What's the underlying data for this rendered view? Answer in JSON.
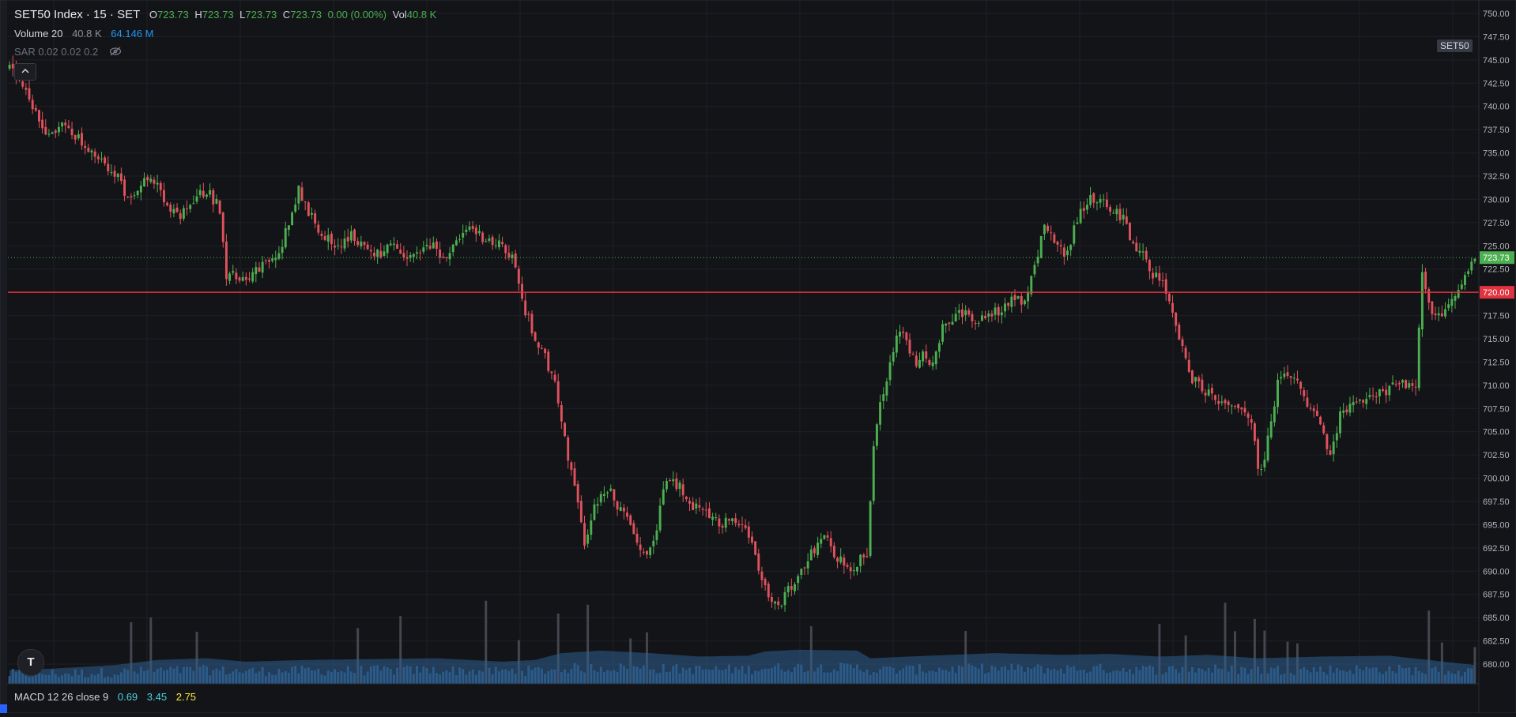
{
  "header": {
    "symbol": "SET50 Index · 15 · SET",
    "o_label": "O",
    "o_value": "723.73",
    "h_label": "H",
    "h_value": "723.73",
    "l_label": "L",
    "l_value": "723.73",
    "c_label": "C",
    "c_value": "723.73",
    "change": "0.00 (0.00%)",
    "vol_label": "Vol",
    "vol_value": "40.8 K"
  },
  "volume_legend": {
    "name": "Volume 20",
    "value": "40.8 K",
    "ma": "64.146 M"
  },
  "sar_legend": {
    "name": "SAR 0.02 0.02 0.2"
  },
  "macd_legend": {
    "name": "MACD 12 26 close 9",
    "v1": "0.69",
    "v2": "3.45",
    "v3": "2.75"
  },
  "symbol_tag": "SET50",
  "logo_text": "T",
  "colors": {
    "up": "#4caf50",
    "down": "#e0525c",
    "background": "#131418",
    "grid": "#1e2026",
    "axis_text": "#b2b5be",
    "volume": "#2d5f8f",
    "hline": "#e0323f",
    "last_price": "#4caf50",
    "vol_value": "#8a8f99",
    "vol_ma": "#2196f3",
    "macd1": "#2196f3",
    "macd2": "#4dd0e1",
    "macd3": "#ffeb3b"
  },
  "icons": {
    "collapse": "chevron-up-icon",
    "hide": "eye-off-icon",
    "logo": "tradingview-logo"
  },
  "chart_data": {
    "type": "candlestick",
    "title": "SET50 Index · 15 · SET",
    "ylim": [
      679,
      751
    ],
    "y_ticks": [
      "680.00",
      "682.50",
      "685.00",
      "687.50",
      "690.00",
      "692.50",
      "695.00",
      "697.50",
      "700.00",
      "702.50",
      "705.00",
      "707.50",
      "710.00",
      "712.50",
      "715.00",
      "717.50",
      "720.00",
      "722.50",
      "725.00",
      "727.50",
      "730.00",
      "732.50",
      "735.00",
      "737.50",
      "740.00",
      "742.50",
      "745.00",
      "747.50",
      "750.00"
    ],
    "horizontal_line": {
      "value": 720.0,
      "label": "720.00"
    },
    "last_price": {
      "value": 723.73,
      "label": "723.73"
    },
    "close_path": [
      [
        0,
        744
      ],
      [
        4,
        742
      ],
      [
        8,
        739
      ],
      [
        12,
        737
      ],
      [
        16,
        738
      ],
      [
        20,
        737
      ],
      [
        24,
        735
      ],
      [
        28,
        734
      ],
      [
        32,
        733
      ],
      [
        36,
        730
      ],
      [
        40,
        732
      ],
      [
        44,
        732
      ],
      [
        48,
        729
      ],
      [
        52,
        728
      ],
      [
        56,
        730
      ],
      [
        60,
        731
      ],
      [
        64,
        729
      ],
      [
        66,
        722
      ],
      [
        70,
        721.5
      ],
      [
        74,
        722
      ],
      [
        78,
        723
      ],
      [
        82,
        724
      ],
      [
        86,
        729
      ],
      [
        88,
        731
      ],
      [
        92,
        728
      ],
      [
        96,
        726
      ],
      [
        100,
        725
      ],
      [
        104,
        726
      ],
      [
        108,
        725
      ],
      [
        112,
        724
      ],
      [
        116,
        725
      ],
      [
        120,
        723.5
      ],
      [
        124,
        724
      ],
      [
        128,
        725
      ],
      [
        132,
        724
      ],
      [
        136,
        725
      ],
      [
        140,
        727
      ],
      [
        144,
        726
      ],
      [
        148,
        725
      ],
      [
        150,
        725
      ],
      [
        154,
        723
      ],
      [
        157,
        718
      ],
      [
        160,
        715
      ],
      [
        163,
        713
      ],
      [
        166,
        710
      ],
      [
        169,
        704
      ],
      [
        172,
        699
      ],
      [
        175,
        693
      ],
      [
        178,
        697
      ],
      [
        182,
        699
      ],
      [
        185,
        697
      ],
      [
        189,
        695
      ],
      [
        193,
        692
      ],
      [
        196,
        693
      ],
      [
        200,
        700
      ],
      [
        204,
        699
      ],
      [
        207,
        697
      ],
      [
        210,
        697
      ],
      [
        214,
        696
      ],
      [
        217,
        695
      ],
      [
        220,
        696
      ],
      [
        224,
        695
      ],
      [
        228,
        690
      ],
      [
        231,
        687
      ],
      [
        234,
        686
      ],
      [
        237,
        688
      ],
      [
        240,
        689
      ],
      [
        244,
        692
      ],
      [
        248,
        694
      ],
      [
        251,
        692
      ],
      [
        255,
        690
      ],
      [
        258,
        691
      ],
      [
        261,
        692
      ],
      [
        263,
        704
      ],
      [
        265,
        708
      ],
      [
        267,
        711
      ],
      [
        270,
        715
      ],
      [
        272,
        716
      ],
      [
        276,
        712
      ],
      [
        278,
        714
      ],
      [
        281,
        712
      ],
      [
        284,
        716
      ],
      [
        287,
        717
      ],
      [
        291,
        718
      ],
      [
        294,
        717
      ],
      [
        298,
        718
      ],
      [
        301,
        718
      ],
      [
        305,
        719
      ],
      [
        309,
        719
      ],
      [
        312,
        723
      ],
      [
        315,
        727
      ],
      [
        319,
        725
      ],
      [
        322,
        724
      ],
      [
        325,
        728
      ],
      [
        328,
        730
      ],
      [
        332,
        730
      ],
      [
        335,
        729
      ],
      [
        339,
        728
      ],
      [
        342,
        725
      ],
      [
        345,
        724
      ],
      [
        348,
        722
      ],
      [
        351,
        721
      ],
      [
        353,
        719
      ],
      [
        356,
        715
      ],
      [
        359,
        711
      ],
      [
        362,
        710
      ],
      [
        365,
        709
      ],
      [
        368,
        708
      ],
      [
        372,
        708
      ],
      [
        376,
        707
      ],
      [
        378,
        706
      ],
      [
        380,
        701
      ],
      [
        382,
        702
      ],
      [
        386,
        710
      ],
      [
        389,
        711
      ],
      [
        392,
        710
      ],
      [
        396,
        707
      ],
      [
        399,
        706
      ],
      [
        402,
        702
      ],
      [
        405,
        707
      ],
      [
        408,
        708
      ],
      [
        411,
        708
      ],
      [
        414,
        709
      ],
      [
        418,
        709
      ],
      [
        422,
        710
      ],
      [
        426,
        710
      ],
      [
        428,
        710
      ],
      [
        430,
        722
      ],
      [
        432,
        719
      ],
      [
        434,
        717
      ],
      [
        436,
        718
      ],
      [
        440,
        719
      ],
      [
        443,
        722
      ],
      [
        446,
        724
      ]
    ],
    "volume_profile": [
      [
        0,
        1.6
      ],
      [
        14,
        1.8
      ],
      [
        32,
        2.2
      ],
      [
        45,
        2.8
      ],
      [
        60,
        3.0
      ],
      [
        72,
        2.6
      ],
      [
        90,
        2.8
      ],
      [
        110,
        2.9
      ],
      [
        130,
        3.0
      ],
      [
        150,
        2.6
      ],
      [
        160,
        2.8
      ],
      [
        168,
        3.6
      ],
      [
        180,
        3.9
      ],
      [
        195,
        3.6
      ],
      [
        210,
        3.2
      ],
      [
        225,
        3.3
      ],
      [
        230,
        3.8
      ],
      [
        240,
        4.0
      ],
      [
        258,
        3.9
      ],
      [
        262,
        3.0
      ],
      [
        280,
        3.3
      ],
      [
        300,
        3.6
      ],
      [
        320,
        3.4
      ],
      [
        335,
        3.5
      ],
      [
        350,
        3.2
      ],
      [
        365,
        3.4
      ],
      [
        380,
        3.0
      ],
      [
        400,
        3.2
      ],
      [
        420,
        3.3
      ],
      [
        446,
        2.2
      ]
    ],
    "bars": 447
  }
}
